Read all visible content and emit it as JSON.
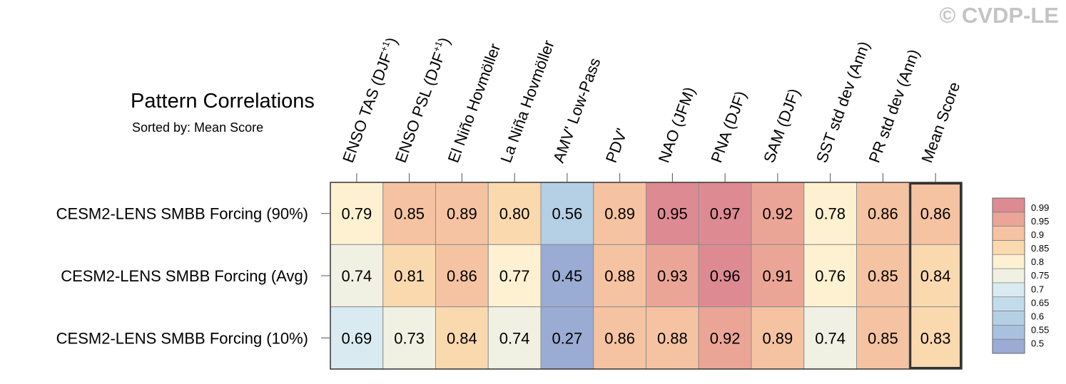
{
  "header": {
    "title": "Pattern Correlations",
    "subtitle": "Sorted by: Mean Score",
    "watermark": "© CVDP-LE"
  },
  "chart_data": {
    "type": "heatmap",
    "title": "Pattern Correlations",
    "subtitle": "Sorted by: Mean Score",
    "columns": [
      {
        "base": "ENSO TAS (DJF",
        "sup": "+1",
        "tail": ")"
      },
      {
        "base": "ENSO PSL (DJF",
        "sup": "+1",
        "tail": ")"
      },
      {
        "base": "El Niño Hovmöller"
      },
      {
        "base": "La Niña Hovmöller"
      },
      {
        "base": "AMV' Low-Pass"
      },
      {
        "base": "PDV'"
      },
      {
        "base": "NAO (JFM)"
      },
      {
        "base": "PNA (DJF)"
      },
      {
        "base": "SAM (DJF)"
      },
      {
        "base": "SST std dev (Ann)"
      },
      {
        "base": "PR std dev (Ann)"
      },
      {
        "base": "Mean Score"
      }
    ],
    "rows": [
      "CESM2-LENS SMBB Forcing (90%)",
      "CESM2-LENS SMBB Forcing (Avg)",
      "CESM2-LENS SMBB Forcing (10%)"
    ],
    "values": [
      [
        "0.79",
        "0.85",
        "0.89",
        "0.80",
        "0.56",
        "0.89",
        "0.95",
        "0.97",
        "0.92",
        "0.78",
        "0.86",
        "0.86"
      ],
      [
        "0.74",
        "0.81",
        "0.86",
        "0.77",
        "0.45",
        "0.88",
        "0.93",
        "0.96",
        "0.91",
        "0.76",
        "0.85",
        "0.84"
      ],
      [
        "0.69",
        "0.73",
        "0.84",
        "0.74",
        "0.27",
        "0.86",
        "0.88",
        "0.92",
        "0.89",
        "0.74",
        "0.85",
        "0.83"
      ]
    ],
    "highlighted_column": "Mean Score",
    "colorbar": {
      "labels": [
        "0.99",
        "0.95",
        "0.9",
        "0.85",
        "0.8",
        "0.75",
        "0.7",
        "0.65",
        "0.6",
        "0.55",
        "0.5"
      ],
      "bands": [
        {
          "min": 0.95,
          "max": 1.0,
          "color": "#de8a93"
        },
        {
          "min": 0.9,
          "max": 0.95,
          "color": "#eba596"
        },
        {
          "min": 0.85,
          "max": 0.9,
          "color": "#f5c3a1"
        },
        {
          "min": 0.8,
          "max": 0.85,
          "color": "#fbd9ae"
        },
        {
          "min": 0.75,
          "max": 0.8,
          "color": "#fef1d1"
        },
        {
          "min": 0.7,
          "max": 0.75,
          "color": "#f1f1e3"
        },
        {
          "min": 0.65,
          "max": 0.7,
          "color": "#d9ebf1"
        },
        {
          "min": 0.6,
          "max": 0.65,
          "color": "#c2dcec"
        },
        {
          "min": 0.55,
          "max": 0.6,
          "color": "#b5cfe5"
        },
        {
          "min": 0.5,
          "max": 0.55,
          "color": "#a8c1de"
        },
        {
          "min": 0.0,
          "max": 0.5,
          "color": "#9aabd4"
        }
      ]
    }
  }
}
